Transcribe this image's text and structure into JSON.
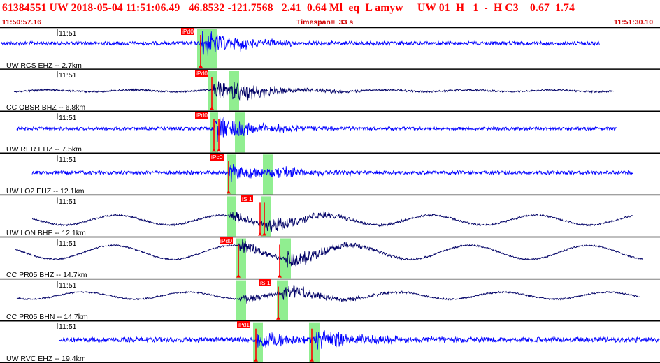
{
  "header": {
    "title": "61384551 UW 2018-05-04 11:51:06.49   46.8532 -121.7568   2.41  0.64 Ml  eq  L amyw     UW 01  H   1  -  H C3    0.67  1.74",
    "start_time": "11:50:57.16",
    "timespan": "Timespan=  33 s",
    "end_time": "11:51:30.10"
  },
  "colors": {
    "blue_trace": "#0000ff",
    "dark_trace": "#000066",
    "pick_red": "#ff0000",
    "pick_window_green": "#90ee90",
    "header_red": "#ff0000",
    "divider": "#000000"
  },
  "traces": [
    {
      "label": "UW RCS EHZ -- 2.7km",
      "minute_tick": "11:51",
      "color": "blue",
      "picks": [
        {
          "label": "iPd0"
        }
      ]
    },
    {
      "label": "CC OBSR BHZ -- 6.8km",
      "minute_tick": "11:51",
      "color": "dark",
      "picks": [
        {
          "label": "iPd0"
        }
      ]
    },
    {
      "label": "UW RER EHZ -- 7.5km",
      "minute_tick": "11:51",
      "color": "blue",
      "picks": [
        {
          "label": "iPd0"
        }
      ]
    },
    {
      "label": "UW LO2 EHZ -- 12.1km",
      "minute_tick": "11:51",
      "color": "blue",
      "picks": [
        {
          "label": "iPc0"
        }
      ]
    },
    {
      "label": "UW LON BHE -- 12.1km",
      "minute_tick": "11:51",
      "color": "dark",
      "picks": [
        {
          "label": "iS 1"
        }
      ]
    },
    {
      "label": "CC PR05 BHZ -- 14.7km",
      "minute_tick": "11:51",
      "color": "dark",
      "picks": [
        {
          "label": "iPd0"
        }
      ]
    },
    {
      "label": "CC PR05 BHN -- 14.7km",
      "minute_tick": "11:51",
      "color": "dark",
      "picks": [
        {
          "label": "iS 1"
        }
      ]
    },
    {
      "label": "UW RVC EHZ -- 19.4km",
      "minute_tick": "11:51",
      "color": "blue",
      "picks": [
        {
          "label": "iPd1"
        }
      ]
    }
  ]
}
